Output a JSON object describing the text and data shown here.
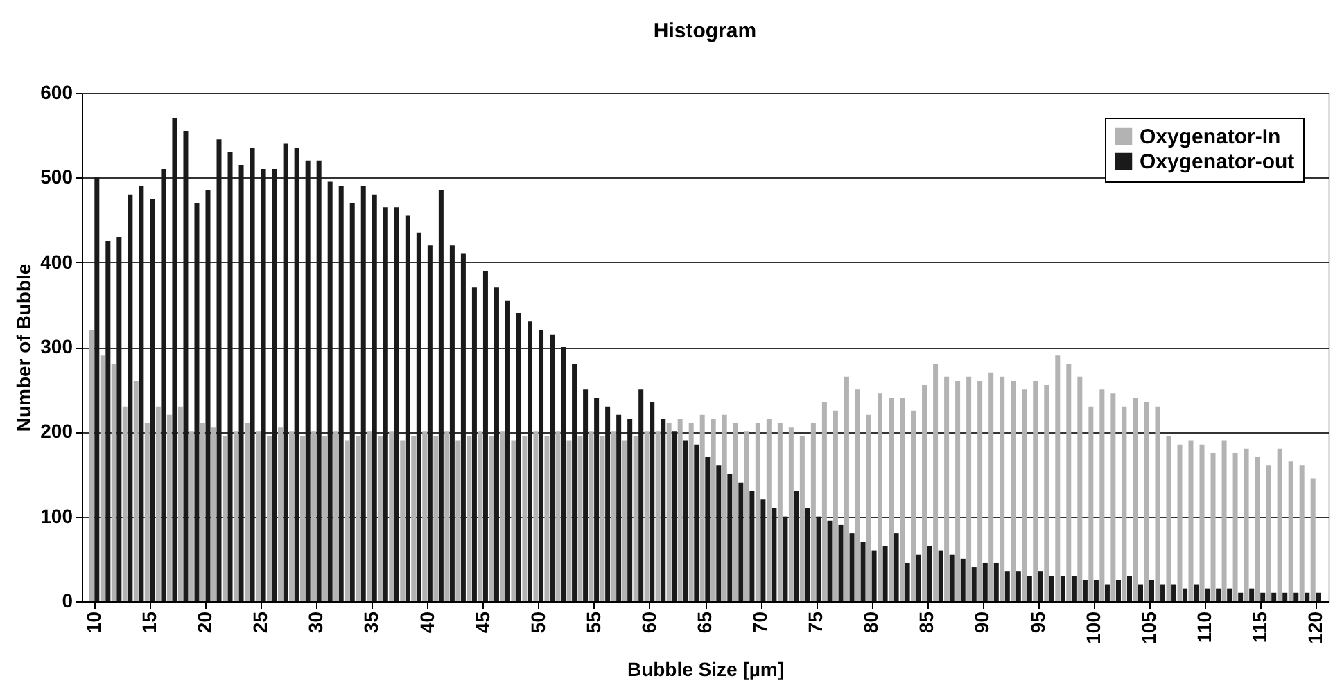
{
  "chart_data": {
    "type": "bar",
    "title": "Histogram",
    "xlabel": "Bubble Size [µm]",
    "ylabel": "Number of Bubble",
    "x": [
      10,
      11,
      12,
      13,
      14,
      15,
      16,
      17,
      18,
      19,
      20,
      21,
      22,
      23,
      24,
      25,
      26,
      27,
      28,
      29,
      30,
      31,
      32,
      33,
      34,
      35,
      36,
      37,
      38,
      39,
      40,
      41,
      42,
      43,
      44,
      45,
      46,
      47,
      48,
      49,
      50,
      51,
      52,
      53,
      54,
      55,
      56,
      57,
      58,
      59,
      60,
      61,
      62,
      63,
      64,
      65,
      66,
      67,
      68,
      69,
      70,
      71,
      72,
      73,
      74,
      75,
      76,
      77,
      78,
      79,
      80,
      81,
      82,
      83,
      84,
      85,
      86,
      87,
      88,
      89,
      90,
      91,
      92,
      93,
      94,
      95,
      96,
      97,
      98,
      99,
      100,
      101,
      102,
      103,
      104,
      105,
      106,
      107,
      108,
      109,
      110,
      111,
      112,
      113,
      114,
      115,
      116,
      117,
      118,
      119,
      120
    ],
    "series": [
      {
        "name": "Oxygenator-In",
        "color": "#b3b3b3",
        "values": [
          320,
          290,
          280,
          230,
          260,
          210,
          230,
          220,
          230,
          200,
          210,
          205,
          195,
          200,
          210,
          200,
          195,
          205,
          200,
          195,
          200,
          195,
          200,
          190,
          195,
          200,
          195,
          200,
          190,
          195,
          200,
          195,
          200,
          190,
          195,
          200,
          195,
          200,
          190,
          195,
          200,
          195,
          200,
          190,
          195,
          200,
          195,
          200,
          190,
          195,
          200,
          200,
          210,
          215,
          210,
          220,
          215,
          220,
          210,
          200,
          210,
          215,
          210,
          205,
          195,
          210,
          235,
          225,
          265,
          250,
          220,
          245,
          240,
          240,
          225,
          255,
          280,
          265,
          260,
          265,
          260,
          270,
          265,
          260,
          250,
          260,
          255,
          290,
          280,
          265,
          230,
          250,
          245,
          230,
          240,
          235,
          230,
          195,
          185,
          190,
          185,
          175,
          190,
          175,
          180,
          170,
          160,
          180,
          165,
          160,
          145
        ]
      },
      {
        "name": "Oxygenator-out",
        "color": "#1a1a1a",
        "values": [
          500,
          425,
          430,
          480,
          490,
          475,
          510,
          570,
          555,
          470,
          485,
          545,
          530,
          515,
          535,
          510,
          510,
          540,
          535,
          520,
          520,
          495,
          490,
          470,
          490,
          480,
          465,
          465,
          455,
          435,
          420,
          485,
          420,
          410,
          370,
          390,
          370,
          355,
          340,
          330,
          320,
          315,
          300,
          280,
          250,
          240,
          230,
          220,
          215,
          250,
          235,
          215,
          200,
          190,
          185,
          170,
          160,
          150,
          140,
          130,
          120,
          110,
          100,
          130,
          110,
          100,
          95,
          90,
          80,
          70,
          60,
          65,
          80,
          45,
          55,
          65,
          60,
          55,
          50,
          40,
          45,
          45,
          35,
          35,
          30,
          35,
          30,
          30,
          30,
          25,
          25,
          20,
          25,
          30,
          20,
          25,
          20,
          20,
          15,
          20,
          15,
          15,
          15,
          10,
          15,
          10,
          10,
          10,
          10,
          10,
          10
        ]
      }
    ],
    "xlim": [
      9.5,
      120.5
    ],
    "xticks": [
      10,
      15,
      20,
      25,
      30,
      35,
      40,
      45,
      50,
      55,
      60,
      65,
      70,
      75,
      80,
      85,
      90,
      95,
      100,
      105,
      110,
      115,
      120
    ],
    "ylim": [
      0,
      600
    ],
    "yticks": [
      0,
      100,
      200,
      300,
      400,
      500,
      600
    ],
    "grid": "y",
    "legend": "top right"
  }
}
